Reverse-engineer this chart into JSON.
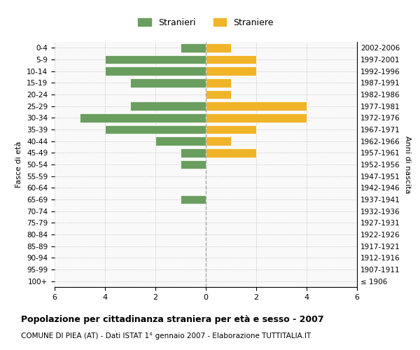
{
  "age_groups": [
    "100+",
    "95-99",
    "90-94",
    "85-89",
    "80-84",
    "75-79",
    "70-74",
    "65-69",
    "60-64",
    "55-59",
    "50-54",
    "45-49",
    "40-44",
    "35-39",
    "30-34",
    "25-29",
    "20-24",
    "15-19",
    "10-14",
    "5-9",
    "0-4"
  ],
  "birth_years": [
    "≤ 1906",
    "1907-1911",
    "1912-1916",
    "1917-1921",
    "1922-1926",
    "1927-1931",
    "1932-1936",
    "1937-1941",
    "1942-1946",
    "1947-1951",
    "1952-1956",
    "1957-1961",
    "1962-1966",
    "1967-1971",
    "1972-1976",
    "1977-1981",
    "1982-1986",
    "1987-1991",
    "1992-1996",
    "1997-2001",
    "2002-2006"
  ],
  "males": [
    0,
    0,
    0,
    0,
    0,
    0,
    0,
    1,
    0,
    0,
    1,
    1,
    2,
    4,
    5,
    3,
    0,
    3,
    4,
    4,
    1
  ],
  "females": [
    0,
    0,
    0,
    0,
    0,
    0,
    0,
    0,
    0,
    0,
    0,
    2,
    1,
    2,
    4,
    4,
    1,
    1,
    2,
    2,
    1
  ],
  "male_color": "#6a9e5f",
  "female_color": "#f0b429",
  "male_label": "Stranieri",
  "female_label": "Straniere",
  "title": "Popolazione per cittadinanza straniera per età e sesso - 2007",
  "subtitle": "COMUNE DI PIEA (AT) - Dati ISTAT 1° gennaio 2007 - Elaborazione TUTTITALIA.IT",
  "ylabel_left": "Fasce di età",
  "ylabel_right": "Anni di nascita",
  "xlim": 6,
  "background_color": "#f9f9f9",
  "grid_color": "#cccccc"
}
